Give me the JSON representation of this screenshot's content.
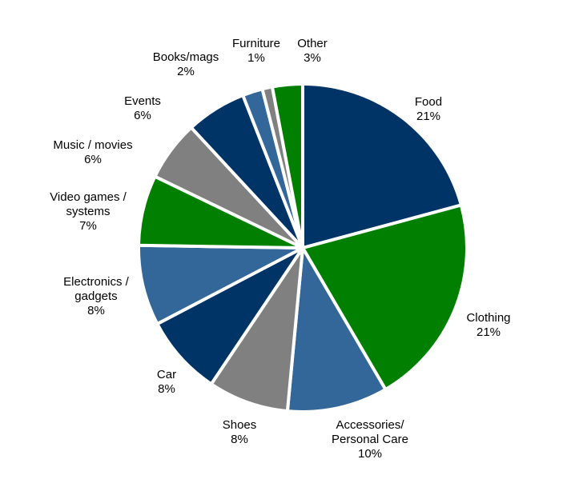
{
  "chart_data": {
    "type": "pie",
    "title": "",
    "colors": {
      "navy": "#003366",
      "green": "#007F00",
      "steel": "#336699",
      "gray": "#808080"
    },
    "slices": [
      {
        "name": "food",
        "label_lines": [
          "Food",
          "21%"
        ],
        "value": 21,
        "color": "navy"
      },
      {
        "name": "clothing",
        "label_lines": [
          "Clothing",
          "21%"
        ],
        "value": 21,
        "color": "green"
      },
      {
        "name": "accessories",
        "label_lines": [
          "Accessories/",
          "Personal Care",
          "10%"
        ],
        "value": 10,
        "color": "steel"
      },
      {
        "name": "shoes",
        "label_lines": [
          "Shoes",
          "8%"
        ],
        "value": 8,
        "color": "gray"
      },
      {
        "name": "car",
        "label_lines": [
          "Car",
          "8%"
        ],
        "value": 8,
        "color": "navy"
      },
      {
        "name": "electronics",
        "label_lines": [
          "Electronics /",
          "gadgets",
          "8%"
        ],
        "value": 8,
        "color": "steel"
      },
      {
        "name": "video-games",
        "label_lines": [
          "Video games /",
          "systems",
          "7%"
        ],
        "value": 7,
        "color": "green"
      },
      {
        "name": "music-movies",
        "label_lines": [
          "Music / movies",
          "6%"
        ],
        "value": 6,
        "color": "gray"
      },
      {
        "name": "events",
        "label_lines": [
          "Events",
          "6%"
        ],
        "value": 6,
        "color": "navy"
      },
      {
        "name": "books-mags",
        "label_lines": [
          "Books/mags",
          "2%"
        ],
        "value": 2,
        "color": "steel"
      },
      {
        "name": "furniture",
        "label_lines": [
          "Furniture",
          "1%"
        ],
        "value": 1,
        "color": "gray"
      },
      {
        "name": "other",
        "label_lines": [
          "Other",
          "3%"
        ],
        "value": 3,
        "color": "green"
      }
    ]
  }
}
